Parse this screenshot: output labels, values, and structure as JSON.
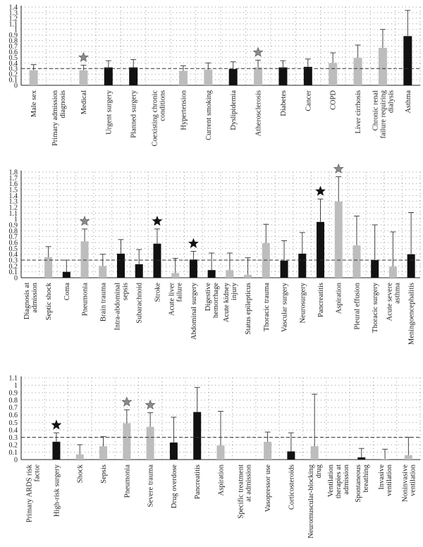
{
  "colors": {
    "black_bar": "#111111",
    "grey_bar": "#bdbdbd",
    "black_star": "#111111",
    "grey_star": "#8a8a8a",
    "reference_line": "#333333",
    "grid_dots": "#9a9a9a"
  },
  "chart_data": [
    {
      "type": "bar",
      "reference_line": 0.3,
      "ylim": [
        0,
        1.4
      ],
      "yticks": [
        0,
        0.1,
        0.2,
        0.3,
        0.4,
        0.5,
        0.6,
        0.7,
        0.8,
        0.9,
        1,
        1.1,
        1.2,
        1.3,
        1.4
      ],
      "ytick_labels": [
        "0",
        "0.1",
        "0.2",
        "0.3",
        "0.4",
        "0.5",
        "0.6",
        "0.7",
        "0.8",
        "0.9",
        "1",
        "1.1",
        "1.2",
        "1.3",
        "1.4"
      ],
      "grid": true,
      "bars": [
        {
          "label": "Male sex",
          "value": 0.27,
          "upper": 0.37,
          "color": "grey"
        },
        {
          "label": "Primary admission diagnosis",
          "value": null,
          "upper": null,
          "color": "none"
        },
        {
          "label": "Medical",
          "value": 0.27,
          "upper": 0.36,
          "color": "grey",
          "star": "grey"
        },
        {
          "label": "Urgent surgery",
          "value": 0.32,
          "upper": 0.44,
          "color": "black"
        },
        {
          "label": "Planned surgery",
          "value": 0.32,
          "upper": 0.46,
          "color": "black"
        },
        {
          "label": "Coexisting chronic conditions",
          "value": null,
          "upper": null,
          "color": "none"
        },
        {
          "label": "Hypertension",
          "value": 0.26,
          "upper": 0.35,
          "color": "grey"
        },
        {
          "label": "Current smoking",
          "value": 0.28,
          "upper": 0.4,
          "color": "grey"
        },
        {
          "label": "Dyslipidemia",
          "value": 0.29,
          "upper": 0.42,
          "color": "black"
        },
        {
          "label": "Atherosclerosis",
          "value": 0.32,
          "upper": 0.45,
          "color": "grey",
          "star": "grey"
        },
        {
          "label": "Diabetes",
          "value": 0.32,
          "upper": 0.44,
          "color": "black"
        },
        {
          "label": "Cancer",
          "value": 0.33,
          "upper": 0.47,
          "color": "black"
        },
        {
          "label": "COPD",
          "value": 0.4,
          "upper": 0.58,
          "color": "grey"
        },
        {
          "label": "Liver cirrhosis",
          "value": 0.49,
          "upper": 0.72,
          "color": "grey"
        },
        {
          "label": "Chronic renal failure requiring dialysis",
          "value": 0.67,
          "upper": 1.0,
          "color": "grey"
        },
        {
          "label": "Asthma",
          "value": 0.88,
          "upper": 1.34,
          "color": "black"
        }
      ]
    },
    {
      "type": "bar",
      "reference_line": 0.3,
      "ylim": [
        0,
        1.8
      ],
      "yticks": [
        0,
        0.1,
        0.2,
        0.3,
        0.4,
        0.5,
        0.6,
        0.7,
        0.8,
        0.9,
        1,
        1.1,
        1.2,
        1.3,
        1.4,
        1.5,
        1.6,
        1.7,
        1.8
      ],
      "ytick_labels": [
        "0",
        "0.1",
        "0.2",
        "0.3",
        "0.4",
        "0.5",
        "0.6",
        "0.7",
        "0.8",
        "0.9",
        "1",
        "1.1",
        "1.2",
        "1.3",
        "1.4",
        "1.5",
        "1.6",
        "1.7",
        "1.8"
      ],
      "grid": true,
      "bars": [
        {
          "label": "Diagnosis at admission",
          "value": null,
          "upper": null,
          "color": "none"
        },
        {
          "label": "Septic shock",
          "value": 0.35,
          "upper": 0.53,
          "color": "grey"
        },
        {
          "label": "Coma",
          "value": 0.1,
          "upper": 0.3,
          "color": "black"
        },
        {
          "label": "Pneumonia",
          "value": 0.62,
          "upper": 0.83,
          "color": "grey",
          "star": "grey"
        },
        {
          "label": "Brain trauma",
          "value": 0.2,
          "upper": 0.4,
          "color": "grey"
        },
        {
          "label": "Intra-abdominal sepsis",
          "value": 0.41,
          "upper": 0.65,
          "color": "black"
        },
        {
          "label": "Subarachnoid",
          "value": 0.23,
          "upper": 0.48,
          "color": "black"
        },
        {
          "label": "Stroke",
          "value": 0.58,
          "upper": 0.83,
          "color": "black",
          "star": "black"
        },
        {
          "label": "Acute liver failure",
          "value": 0.08,
          "upper": 0.33,
          "color": "grey"
        },
        {
          "label": "Abdominal surgery",
          "value": 0.31,
          "upper": 0.45,
          "color": "black",
          "star": "black"
        },
        {
          "label": "Digestive hemorrhage",
          "value": 0.13,
          "upper": 0.42,
          "color": "black"
        },
        {
          "label": "Acute kidney injury",
          "value": 0.13,
          "upper": 0.42,
          "color": "grey"
        },
        {
          "label": "Status epilepticus",
          "value": 0.05,
          "upper": 0.34,
          "color": "grey"
        },
        {
          "label": "Thoracic trauma",
          "value": 0.59,
          "upper": 0.91,
          "color": "grey"
        },
        {
          "label": "Vascular surgery",
          "value": 0.29,
          "upper": 0.63,
          "color": "black"
        },
        {
          "label": "Neurosurgery",
          "value": 0.41,
          "upper": 0.77,
          "color": "black"
        },
        {
          "label": "Pancreatitis",
          "value": 0.95,
          "upper": 1.34,
          "color": "black",
          "star": "black"
        },
        {
          "label": "Aspiration",
          "value": 1.3,
          "upper": 1.72,
          "color": "grey",
          "star": "grey"
        },
        {
          "label": "Pleural effusion",
          "value": 0.55,
          "upper": 1.05,
          "color": "grey"
        },
        {
          "label": "Thoracic surgery",
          "value": 0.3,
          "upper": 0.9,
          "color": "black"
        },
        {
          "label": "Acute severe asthma",
          "value": 0.19,
          "upper": 0.78,
          "color": "grey"
        },
        {
          "label": "Meningoencephalitis",
          "value": 0.4,
          "upper": 1.11,
          "color": "black"
        }
      ]
    },
    {
      "type": "bar",
      "reference_line": 0.3,
      "ylim": [
        0,
        1.1
      ],
      "yticks": [
        0,
        0.1,
        0.2,
        0.3,
        0.4,
        0.5,
        0.6,
        0.7,
        0.8,
        0.9,
        1,
        1.1
      ],
      "ytick_labels": [
        "0",
        "0.1",
        "0.2",
        "0.3",
        "0.4",
        "0.5",
        "0.6",
        "0.7",
        "0.8",
        "0.9",
        "1",
        "1.1"
      ],
      "grid": true,
      "bars": [
        {
          "label": "Primary ARDS risk factor",
          "value": null,
          "upper": null,
          "color": "none"
        },
        {
          "label": "High-risk surgery",
          "value": 0.24,
          "upper": 0.36,
          "color": "black",
          "star": "black"
        },
        {
          "label": "Shock",
          "value": 0.07,
          "upper": 0.2,
          "color": "grey"
        },
        {
          "label": "Sepsis",
          "value": 0.18,
          "upper": 0.31,
          "color": "grey"
        },
        {
          "label": "Pneumonia",
          "value": 0.49,
          "upper": 0.67,
          "color": "grey",
          "star": "grey"
        },
        {
          "label": "Severe trauma",
          "value": 0.44,
          "upper": 0.63,
          "color": "grey",
          "star": "grey"
        },
        {
          "label": "Drug overdose",
          "value": 0.23,
          "upper": 0.57,
          "color": "black"
        },
        {
          "label": "Pancreatitis",
          "value": 0.64,
          "upper": 0.97,
          "color": "black"
        },
        {
          "label": "Aspiration",
          "value": 0.19,
          "upper": 0.65,
          "color": "grey"
        },
        {
          "label": "Specific treatment at admission",
          "value": null,
          "upper": null,
          "color": "none"
        },
        {
          "label": "Vasopressor use",
          "value": 0.24,
          "upper": 0.37,
          "color": "grey"
        },
        {
          "label": "Corticosteroids",
          "value": 0.11,
          "upper": 0.36,
          "color": "black"
        },
        {
          "label": "Neuromuscular-blocking drug",
          "value": 0.18,
          "upper": 0.88,
          "color": "grey"
        },
        {
          "label": "Ventilation therapies at admission",
          "value": null,
          "upper": null,
          "color": "none"
        },
        {
          "label": "Spontaneous breathing",
          "value": 0.03,
          "upper": 0.15,
          "color": "black"
        },
        {
          "label": "Invasive ventilation",
          "value": 0.01,
          "upper": 0.14,
          "color": "grey"
        },
        {
          "label": "Noninvasive ventilation",
          "value": 0.06,
          "upper": 0.3,
          "color": "grey"
        }
      ]
    }
  ]
}
